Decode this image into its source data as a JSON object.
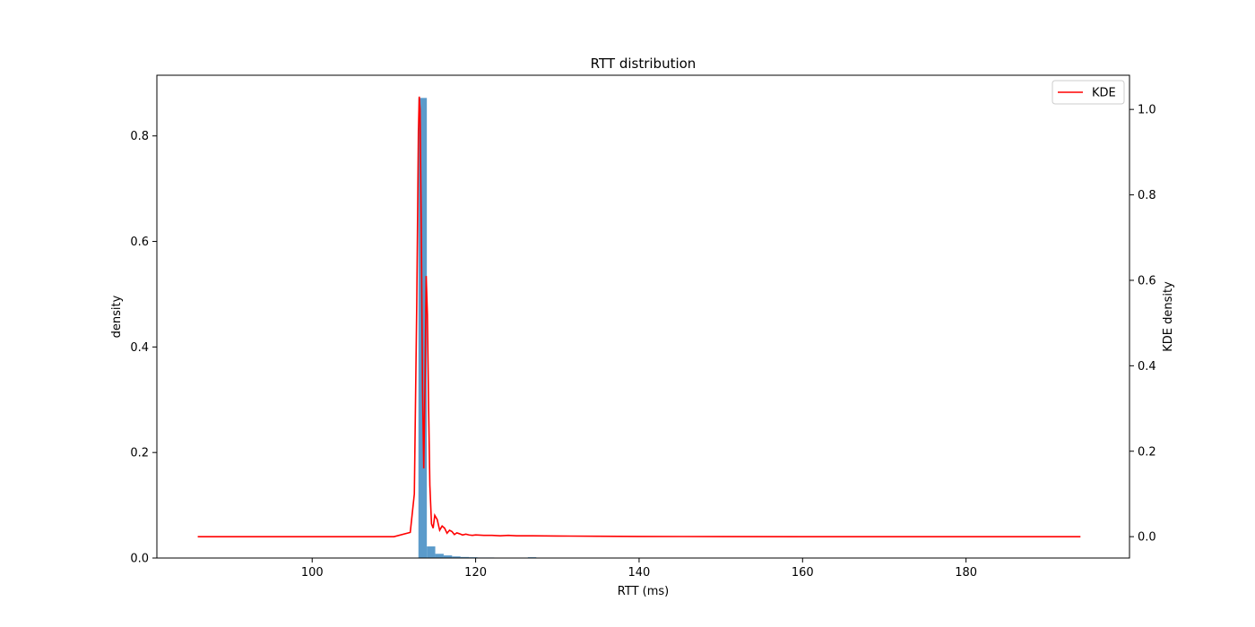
{
  "chart_data": {
    "type": "bar",
    "title": "RTT distribution",
    "xlabel": "RTT (ms)",
    "ylabel": "density",
    "y2label": "KDE density",
    "xlim": [
      81,
      200
    ],
    "ylim": [
      0,
      0.915
    ],
    "y2lim": [
      -0.05,
      1.08
    ],
    "x_ticks": [
      100,
      120,
      140,
      160,
      180
    ],
    "y_ticks": [
      0.0,
      0.2,
      0.4,
      0.6,
      0.8
    ],
    "y2_ticks": [
      0.0,
      0.2,
      0.4,
      0.6,
      0.8,
      1.0
    ],
    "grid": false,
    "legend": {
      "position": "top-right",
      "entries": [
        "KDE"
      ]
    },
    "histogram": {
      "bar_color": "#5b9bcb",
      "bin_width": 1.03,
      "bins": [
        {
          "x0": 113.0,
          "density": 0.872
        },
        {
          "x0": 114.03,
          "density": 0.022
        },
        {
          "x0": 115.06,
          "density": 0.008
        },
        {
          "x0": 116.09,
          "density": 0.005
        },
        {
          "x0": 117.12,
          "density": 0.003
        },
        {
          "x0": 118.15,
          "density": 0.002
        },
        {
          "x0": 119.18,
          "density": 0.0015
        },
        {
          "x0": 120.21,
          "density": 0.001
        },
        {
          "x0": 121.24,
          "density": 0.001
        },
        {
          "x0": 122.27,
          "density": 0.0007
        },
        {
          "x0": 123.3,
          "density": 0.0005
        },
        {
          "x0": 124.33,
          "density": 0.0004
        },
        {
          "x0": 125.36,
          "density": 0.0004
        },
        {
          "x0": 126.39,
          "density": 0.0015
        },
        {
          "x0": 127.42,
          "density": 0.0004
        },
        {
          "x0": 128.45,
          "density": 0.0003
        }
      ]
    },
    "series": [
      {
        "name": "KDE",
        "color": "#ff0000",
        "axis": "right",
        "x": [
          86,
          100,
          110,
          112.0,
          112.5,
          112.8,
          113.0,
          113.1,
          113.2,
          113.35,
          113.5,
          113.65,
          113.8,
          113.95,
          114.1,
          114.25,
          114.4,
          114.6,
          114.8,
          115.0,
          115.3,
          115.6,
          115.9,
          116.2,
          116.5,
          116.8,
          117.1,
          117.4,
          117.7,
          118.0,
          118.4,
          118.8,
          119.2,
          119.6,
          120.0,
          121.0,
          122.0,
          123.0,
          124.0,
          125.0,
          127.0,
          130.0,
          135.0,
          140.0,
          150.0,
          160.0,
          170.0,
          180.0,
          194
        ],
        "y": [
          0.0,
          0.0,
          0.0,
          0.01,
          0.1,
          0.55,
          0.95,
          1.03,
          1.0,
          0.72,
          0.35,
          0.16,
          0.35,
          0.61,
          0.52,
          0.3,
          0.12,
          0.03,
          0.02,
          0.05,
          0.04,
          0.015,
          0.025,
          0.02,
          0.008,
          0.015,
          0.012,
          0.005,
          0.009,
          0.007,
          0.004,
          0.006,
          0.004,
          0.003,
          0.004,
          0.003,
          0.003,
          0.002,
          0.003,
          0.002,
          0.002,
          0.0015,
          0.001,
          0.0005,
          0.0002,
          0.0,
          0.0,
          0.0,
          0.0
        ]
      }
    ]
  }
}
